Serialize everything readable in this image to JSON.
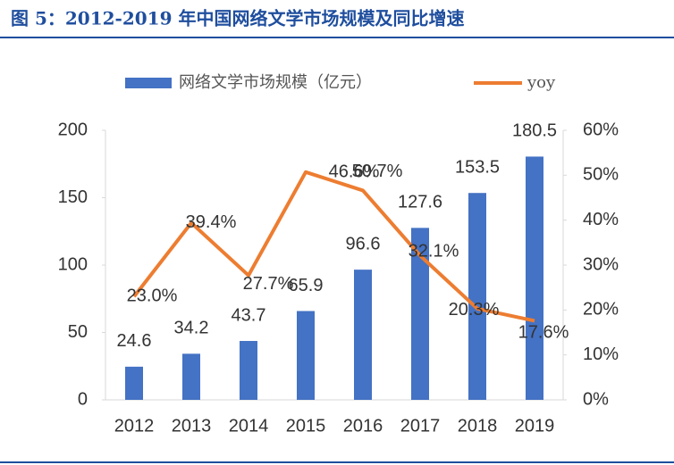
{
  "chart_data": {
    "type": "bar-line",
    "title": "图 5：2012-2019 年中国网络文学市场规模及同比增速",
    "categories": [
      "2012",
      "2013",
      "2014",
      "2015",
      "2016",
      "2017",
      "2018",
      "2019"
    ],
    "series": [
      {
        "name": "网络文学市场规模（亿元）",
        "type": "bar",
        "color": "#4472c4",
        "values": [
          24.6,
          34.2,
          43.7,
          65.9,
          96.6,
          127.6,
          153.5,
          180.5
        ]
      },
      {
        "name": "yoy",
        "type": "line",
        "axis": "y2",
        "color": "#ed7d31",
        "values": [
          23.0,
          39.4,
          27.7,
          50.7,
          46.6,
          32.1,
          20.3,
          17.6
        ],
        "value_labels": [
          "23.0%",
          "39.4%",
          "27.7%",
          "50.7%",
          "46.6%",
          "32.1%",
          "20.3%",
          "17.6%"
        ]
      }
    ],
    "ylim": [
      0,
      200
    ],
    "yticks": [
      0,
      50,
      100,
      150,
      200
    ],
    "y2lim": [
      0,
      60
    ],
    "y2ticks": [
      {
        "value": 0,
        "label": "0%"
      },
      {
        "value": 10,
        "label": "10%"
      },
      {
        "value": 20,
        "label": "20%"
      },
      {
        "value": 30,
        "label": "30%"
      },
      {
        "value": 40,
        "label": "40%"
      },
      {
        "value": 50,
        "label": "50%"
      },
      {
        "value": 60,
        "label": "60%"
      }
    ],
    "grid": false
  }
}
